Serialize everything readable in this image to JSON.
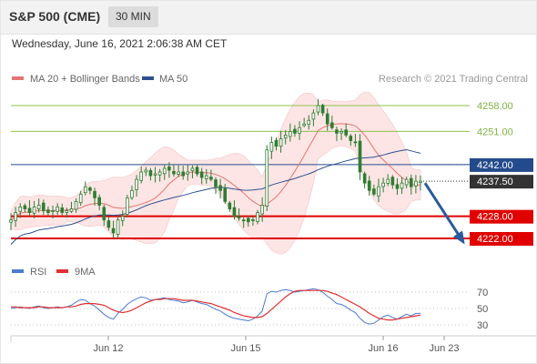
{
  "header": {
    "instrument": "S&P 500 (CME)",
    "timeframe": "30 MIN"
  },
  "date_time": "Wednesday, June 16, 2021 2:06:38 AM CET",
  "legend": {
    "ma20": "MA 20 + Bollinger Bands",
    "ma50": "MA 50",
    "credit": "Research © 2021 Trading Central"
  },
  "rsi_legend": {
    "rsi": "RSI",
    "ma9": "9MA"
  },
  "colors": {
    "candle": "#2e7d32",
    "ma20": "#e57373",
    "bands_fill": "#fde3e3",
    "ma50": "#2f4f8f",
    "resistance": "#8bc34a",
    "support": "#e00000",
    "pivot": "#234b8c",
    "current": "#333333",
    "arrow": "#2a5b9a",
    "rsi": "#4a7bd0",
    "rsi_ma": "#e03030"
  },
  "chart_data": [
    {
      "type": "candlestick",
      "title": "S&P 500 (CME)",
      "xlabel": "",
      "ylabel": "",
      "x_ticks": [
        "Jun 12",
        "Jun 15",
        "Jun 16",
        "Jun 23"
      ],
      "ylim": [
        4218,
        4262
      ],
      "grid": false,
      "legend_position": "top-left",
      "series": [
        {
          "name": "MA 20 + Bollinger Bands"
        },
        {
          "name": "MA 50"
        }
      ],
      "horizontal_levels": [
        {
          "value": 4258.0,
          "label": "4258.00",
          "role": "resistance"
        },
        {
          "value": 4251.0,
          "label": "4251.00",
          "role": "resistance"
        },
        {
          "value": 4242.0,
          "label": "4242.00",
          "role": "pivot"
        },
        {
          "value": 4237.5,
          "label": "4237.50",
          "role": "current"
        },
        {
          "value": 4228.0,
          "label": "4228.00",
          "role": "support"
        },
        {
          "value": 4222.0,
          "label": "4222.00",
          "role": "support"
        }
      ],
      "forecast_arrow": {
        "from": 4237.5,
        "to": 4222.0
      },
      "close_path": [
        4227.0,
        4229.0,
        4230.5,
        4230.0,
        4229.0,
        4230.5,
        4231.0,
        4229.5,
        4229.0,
        4229.5,
        4230.5,
        4229.0,
        4229.5,
        4230.0,
        4232.0,
        4234.0,
        4236.0,
        4235.0,
        4233.0,
        4231.0,
        4227.0,
        4225.0,
        4223.5,
        4227.0,
        4228.0,
        4233.0,
        4235.0,
        4238.0,
        4240.0,
        4240.5,
        4239.0,
        4239.5,
        4240.0,
        4241.0,
        4240.5,
        4239.5,
        4240.0,
        4239.0,
        4240.0,
        4241.0,
        4239.5,
        4238.5,
        4239.0,
        4238.0,
        4236.0,
        4235.0,
        4232.0,
        4230.0,
        4228.0,
        4227.5,
        4227.0,
        4226.5,
        4227.0,
        4229.0,
        4231.0,
        4246.0,
        4248.0,
        4247.0,
        4249.0,
        4250.0,
        4251.0,
        4250.5,
        4252.0,
        4253.0,
        4254.0,
        4256.0,
        4258.0,
        4256.0,
        4253.0,
        4252.0,
        4250.5,
        4251.0,
        4250.0,
        4248.5,
        4248.0,
        4240.0,
        4237.0,
        4235.0,
        4234.0,
        4236.0,
        4237.0,
        4238.0,
        4236.5,
        4235.5,
        4237.0,
        4238.0,
        4236.0,
        4237.5,
        4237.5
      ]
    },
    {
      "type": "line",
      "title": "RSI",
      "xlabel": "",
      "ylabel": "",
      "y_ticks": [
        70,
        50,
        30
      ],
      "ylim": [
        22,
        78
      ],
      "series": [
        {
          "name": "RSI",
          "values": [
            50,
            51,
            52,
            51,
            50,
            52,
            53,
            51,
            50,
            51,
            52,
            51,
            52,
            54,
            58,
            61,
            60,
            56,
            53,
            48,
            43,
            39,
            37,
            44,
            49,
            55,
            59,
            62,
            64,
            63,
            60,
            61,
            62,
            63,
            61,
            60,
            59,
            57,
            58,
            60,
            58,
            56,
            55,
            52,
            49,
            47,
            43,
            40,
            38,
            37,
            36,
            35,
            37,
            41,
            47,
            68,
            71,
            70,
            72,
            73,
            72,
            70,
            71,
            72,
            73,
            74,
            73,
            70,
            65,
            61,
            56,
            55,
            52,
            48,
            45,
            38,
            33,
            31,
            32,
            36,
            40,
            42,
            39,
            37,
            40,
            43,
            41,
            44,
            44
          ]
        },
        {
          "name": "9MA",
          "values": [
            52,
            52,
            51,
            51,
            51,
            51,
            52,
            52,
            51,
            51,
            51,
            51,
            52,
            52,
            53,
            55,
            56,
            56,
            56,
            55,
            54,
            51,
            48,
            46,
            45,
            46,
            48,
            51,
            54,
            57,
            59,
            61,
            61,
            62,
            62,
            62,
            61,
            60,
            60,
            60,
            59,
            58,
            57,
            56,
            54,
            52,
            50,
            48,
            45,
            43,
            41,
            40,
            39,
            39,
            40,
            44,
            49,
            54,
            59,
            64,
            68,
            71,
            72,
            72,
            72,
            72,
            72,
            72,
            71,
            69,
            67,
            64,
            61,
            58,
            55,
            52,
            48,
            44,
            41,
            38,
            37,
            36,
            36,
            37,
            38,
            39,
            40,
            41,
            42
          ]
        }
      ]
    }
  ]
}
